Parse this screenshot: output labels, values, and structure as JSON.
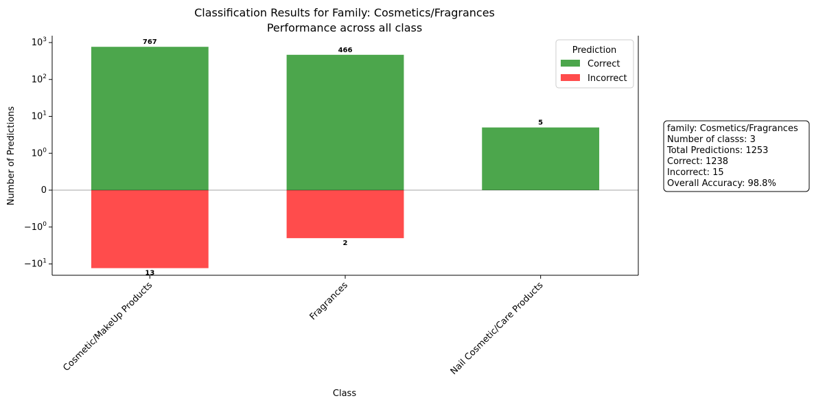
{
  "chart_data": {
    "type": "bar",
    "title": "Classification Results for Family: Cosmetics/Fragrances",
    "subtitle": "Performance across all class",
    "xlabel": "Class",
    "ylabel": "Number of Predictions",
    "yscale": "symlog",
    "categories": [
      "Cosmetic/MakeUp Products",
      "Fragrances",
      "Nail Cosmetic/Care Products"
    ],
    "series": [
      {
        "name": "Correct",
        "color": "#4ca64c",
        "values": [
          767,
          466,
          5
        ],
        "labels": [
          "767",
          "466",
          "5"
        ]
      },
      {
        "name": "Incorrect",
        "color": "#ff4c4c",
        "values": [
          -13,
          -2,
          0
        ],
        "labels": [
          "13",
          "2",
          ""
        ]
      }
    ],
    "y_ticks": [
      {
        "value": 1000,
        "base": "10",
        "exp": "3"
      },
      {
        "value": 100,
        "base": "10",
        "exp": "2"
      },
      {
        "value": 10,
        "base": "10",
        "exp": "1"
      },
      {
        "value": 1,
        "base": "10",
        "exp": "0"
      },
      {
        "value": 0,
        "base": "0",
        "exp": ""
      },
      {
        "value": -1,
        "base": "−10",
        "exp": "0"
      },
      {
        "value": -10,
        "base": "−10",
        "exp": "1"
      }
    ],
    "legend": {
      "title": "Prediction",
      "position": "top-right"
    },
    "grid": false,
    "zero_line": true,
    "info_box": [
      "family: Cosmetics/Fragrances",
      "Number of classs: 3",
      "Total Predictions: 1253",
      "Correct: 1238",
      "Incorrect: 15",
      "Overall Accuracy: 98.8%"
    ]
  }
}
